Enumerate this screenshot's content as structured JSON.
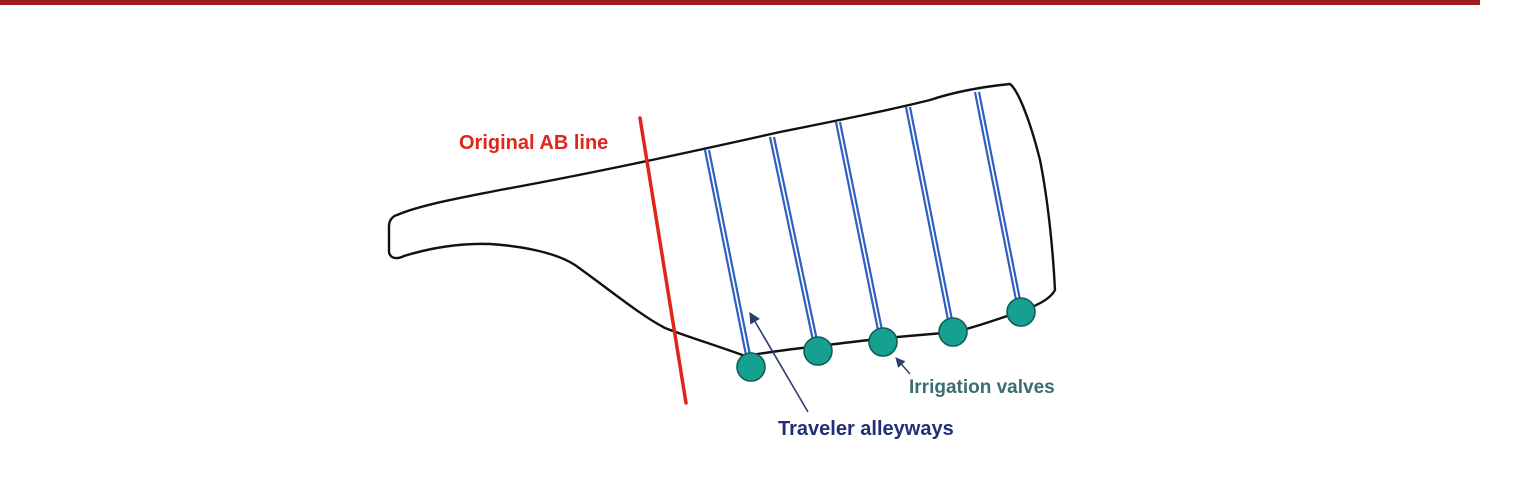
{
  "labels": {
    "ab_line": "Original AB line",
    "valves": "Irrigation valves",
    "alleyways": "Traveler alleyways"
  },
  "colors": {
    "top_rule": "#a01c1c",
    "outline": "#111111",
    "ab_line": "#e0261b",
    "alley": "#2f5fc0",
    "valve_fill": "#16a08f",
    "valve_stroke": "#0f5e55",
    "valves_text": "#3b6e72",
    "alleyways_text": "#1f2f7a",
    "pointer": "#2b3d6e"
  },
  "icons": {
    "valve": "filled-circle",
    "pointer": "arrow"
  }
}
